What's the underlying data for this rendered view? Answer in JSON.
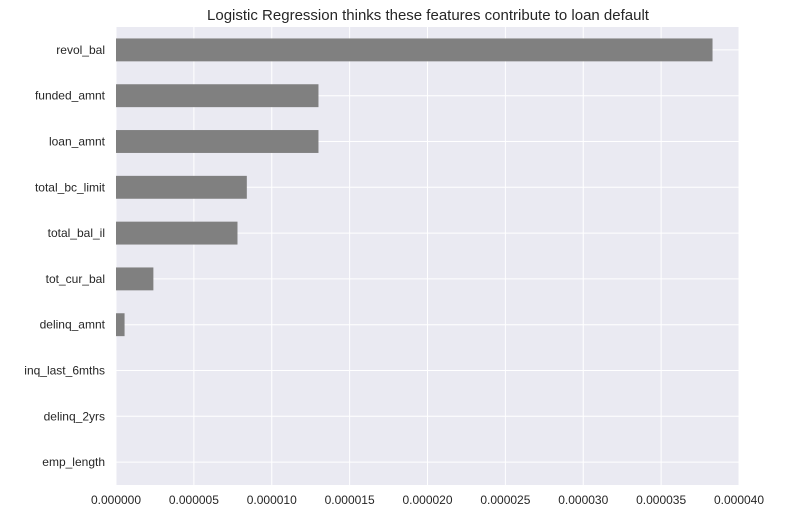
{
  "chart_data": {
    "type": "bar",
    "orientation": "horizontal",
    "title": "Logistic Regression thinks these features contribute to loan default",
    "xlabel": "",
    "ylabel": "",
    "categories": [
      "revol_bal",
      "funded_amnt",
      "loan_amnt",
      "total_bc_limit",
      "total_bal_il",
      "tot_cur_bal",
      "delinq_amnt",
      "inq_last_6mths",
      "delinq_2yrs",
      "emp_length"
    ],
    "values": [
      3.83e-05,
      1.3e-05,
      1.3e-05,
      8.4e-06,
      7.8e-06,
      2.4e-06,
      5.5e-07,
      0,
      0,
      0
    ],
    "xlim": [
      0,
      4e-05
    ],
    "xticks": [
      0,
      5e-06,
      1e-05,
      1.5e-05,
      2e-05,
      2.5e-05,
      3e-05,
      3.5e-05,
      4e-05
    ],
    "xtick_labels": [
      "0.000000",
      "0.000005",
      "0.000010",
      "0.000015",
      "0.000020",
      "0.000025",
      "0.000030",
      "0.000035",
      "0.000040"
    ],
    "grid": true,
    "colors": {
      "bar": "#808080",
      "plot_background": "#eaeaf2",
      "grid": "#ffffff"
    }
  }
}
